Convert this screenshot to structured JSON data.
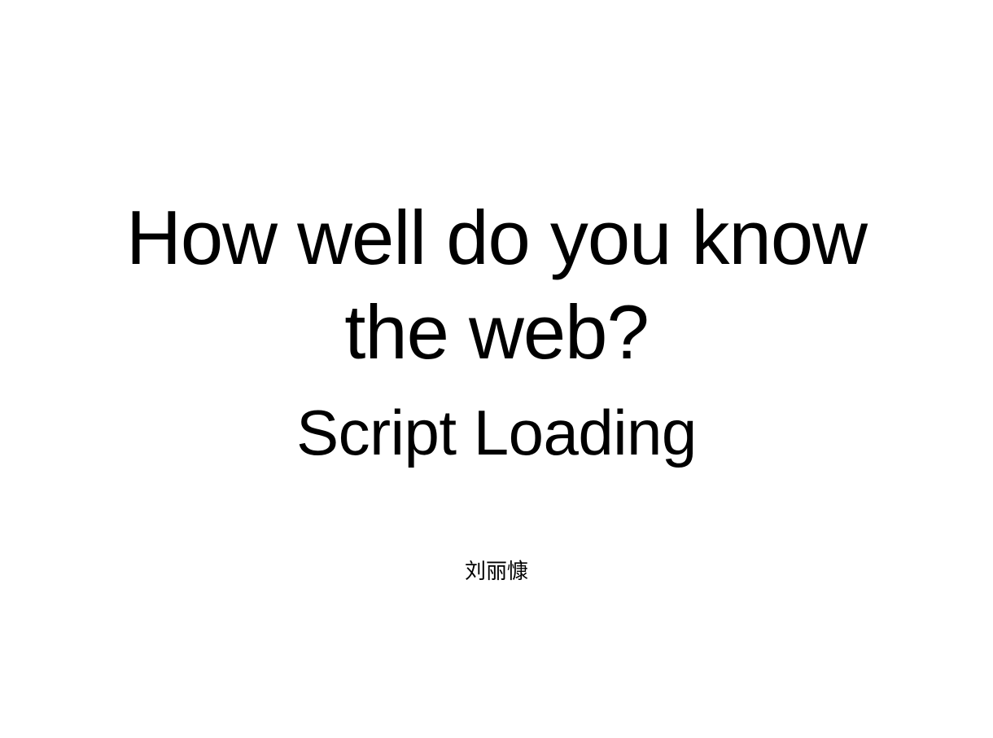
{
  "slide": {
    "title_lines": [
      "How well do you know",
      "the web?"
    ],
    "subtitle": "Script Loading",
    "author": "刘丽慷"
  },
  "colors": {
    "background": "#ffffff",
    "text": "#000000"
  }
}
